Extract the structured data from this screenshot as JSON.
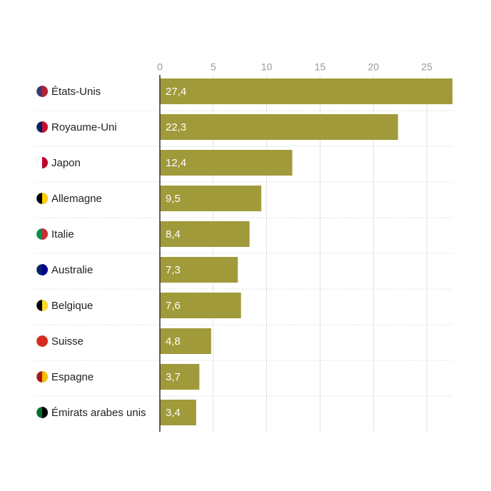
{
  "chart_data": {
    "type": "bar",
    "orientation": "horizontal",
    "categories": [
      "États-Unis",
      "Royaume-Uni",
      "Japon",
      "Allemagne",
      "Italie",
      "Australie",
      "Belgique",
      "Suisse",
      "Espagne",
      "Émirats arabes unis"
    ],
    "values": [
      27.4,
      22.3,
      12.4,
      9.5,
      8.4,
      7.3,
      7.6,
      4.8,
      3.7,
      3.4
    ],
    "value_labels": [
      "27,4",
      "22,3",
      "12,4",
      "9,5",
      "8,4",
      "7,3",
      "7,6",
      "4,8",
      "3,7",
      "3,4"
    ],
    "color": "#a09a3a",
    "xlim": [
      0,
      27.4
    ],
    "xticks": [
      0,
      5,
      10,
      15,
      20,
      25
    ],
    "grid": true
  }
}
